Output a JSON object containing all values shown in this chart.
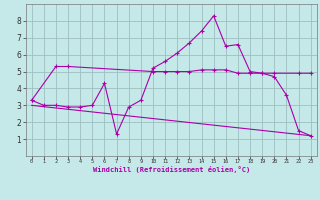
{
  "xlabel": "Windchill (Refroidissement éolien,°C)",
  "background_color": "#c5e8e8",
  "line_color": "#aa00aa",
  "grid_color": "#9dbfbf",
  "xlim": [
    -0.5,
    23.5
  ],
  "ylim": [
    0,
    9
  ],
  "xticks": [
    0,
    1,
    2,
    3,
    4,
    5,
    6,
    7,
    8,
    9,
    10,
    11,
    12,
    13,
    14,
    15,
    16,
    17,
    18,
    19,
    20,
    21,
    22,
    23
  ],
  "yticks": [
    1,
    2,
    3,
    4,
    5,
    6,
    7,
    8
  ],
  "line1_x": [
    0,
    1,
    2,
    3,
    4,
    5,
    6,
    7,
    8,
    9,
    10,
    11,
    12,
    13,
    14,
    15,
    16,
    17,
    18,
    19,
    20,
    21,
    22,
    23
  ],
  "line1_y": [
    3.3,
    3.0,
    3.0,
    2.9,
    2.9,
    3.0,
    4.3,
    1.3,
    2.9,
    3.3,
    5.2,
    5.6,
    6.1,
    6.7,
    7.4,
    8.3,
    6.5,
    6.6,
    5.0,
    4.9,
    4.7,
    3.6,
    1.5,
    1.2
  ],
  "line2_x": [
    0,
    2,
    3,
    10,
    11,
    12,
    13,
    14,
    15,
    16,
    17,
    18,
    19,
    20,
    22,
    23
  ],
  "line2_y": [
    3.3,
    5.3,
    5.3,
    5.0,
    5.0,
    5.0,
    5.0,
    5.1,
    5.1,
    5.1,
    4.9,
    4.9,
    4.9,
    4.9,
    4.9,
    4.9
  ],
  "line3_x": [
    0,
    23
  ],
  "line3_y": [
    3.0,
    1.2
  ]
}
